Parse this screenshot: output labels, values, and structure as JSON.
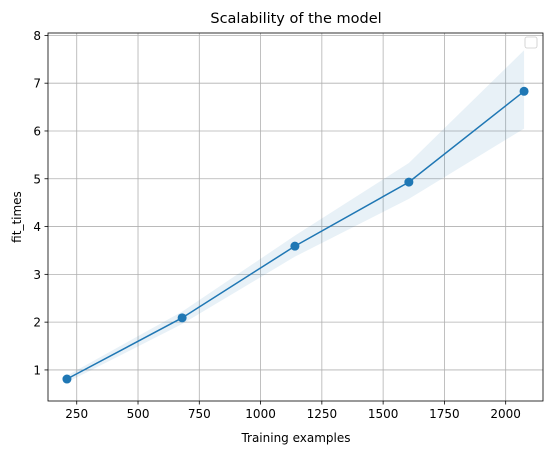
{
  "chart_data": {
    "type": "line",
    "title": "Scalability of the model",
    "xlabel": "Training examples",
    "ylabel": "fit_times",
    "xlim": [
      132.75,
      2152.25
    ],
    "ylim": [
      0.35,
      8.05
    ],
    "xticks": [
      250,
      500,
      750,
      1000,
      1250,
      1500,
      1750,
      2000
    ],
    "xtick_labels": [
      "250",
      "500",
      "750",
      "1000",
      "1250",
      "1500",
      "1750",
      "2000"
    ],
    "yticks": [
      1,
      2,
      3,
      4,
      5,
      6,
      7,
      8
    ],
    "ytick_labels": [
      "1",
      "2",
      "3",
      "4",
      "5",
      "6",
      "7",
      "8"
    ],
    "grid": true,
    "legend": {
      "placement": "top-right",
      "entries": []
    },
    "series": [
      {
        "x": [
          210,
          680,
          1140,
          1605,
          2075
        ],
        "values": [
          0.81,
          2.09,
          3.59,
          4.93,
          6.83
        ],
        "lower": [
          0.74,
          1.96,
          3.37,
          4.58,
          6.05
        ],
        "upper": [
          0.88,
          2.22,
          3.81,
          5.33,
          7.69
        ],
        "color": "#1f77b4",
        "band_color": "#1f77b4",
        "band_opacity": 0.1,
        "marker": "circle"
      }
    ]
  }
}
